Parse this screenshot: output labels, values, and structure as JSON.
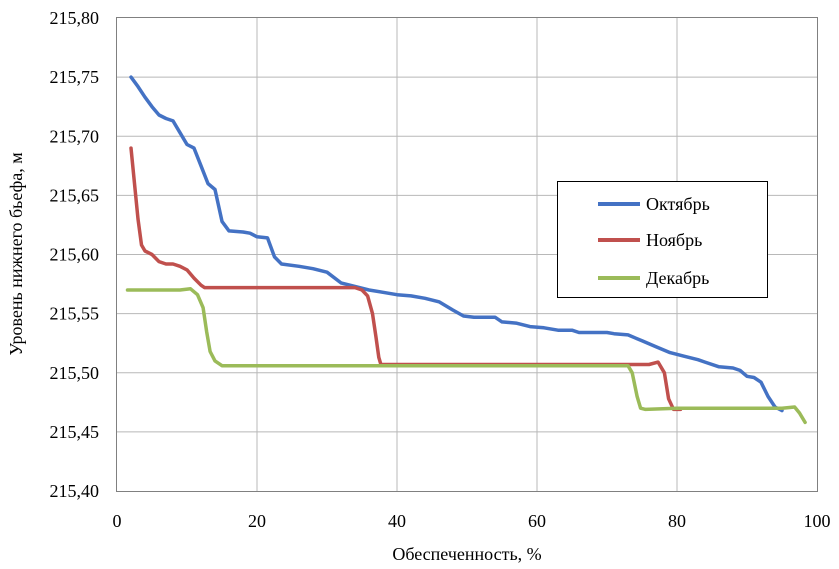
{
  "chart_data": {
    "type": "line",
    "xlabel": "Обеспеченность, %",
    "ylabel": "Уровень нижнего бьефа, м",
    "xlim": [
      0,
      100
    ],
    "ylim": [
      215.4,
      215.8
    ],
    "x_ticks": [
      "0",
      "20",
      "40",
      "60",
      "80",
      "100"
    ],
    "y_ticks": [
      "215,40",
      "215,45",
      "215,50",
      "215,55",
      "215,60",
      "215,65",
      "215,70",
      "215,75",
      "215,80"
    ],
    "grid": true,
    "legend_position": "right",
    "series": [
      {
        "name": "Октябрь",
        "color": "#4472C4",
        "points": [
          [
            2,
            215.75
          ],
          [
            3,
            215.742
          ],
          [
            4,
            215.733
          ],
          [
            5,
            215.725
          ],
          [
            6,
            215.718
          ],
          [
            7,
            215.715
          ],
          [
            8,
            215.713
          ],
          [
            9,
            215.703
          ],
          [
            10,
            215.693
          ],
          [
            11,
            215.69
          ],
          [
            12,
            215.675
          ],
          [
            13,
            215.66
          ],
          [
            14,
            215.655
          ],
          [
            15,
            215.628
          ],
          [
            16,
            215.62
          ],
          [
            18,
            215.619
          ],
          [
            19,
            215.618
          ],
          [
            20,
            215.615
          ],
          [
            21.5,
            215.614
          ],
          [
            22.5,
            215.598
          ],
          [
            23.5,
            215.592
          ],
          [
            26,
            215.59
          ],
          [
            28,
            215.588
          ],
          [
            30,
            215.585
          ],
          [
            32,
            215.576
          ],
          [
            34,
            215.573
          ],
          [
            36,
            215.57
          ],
          [
            38,
            215.568
          ],
          [
            40,
            215.566
          ],
          [
            42,
            215.565
          ],
          [
            44,
            215.563
          ],
          [
            46,
            215.56
          ],
          [
            48,
            215.553
          ],
          [
            49.5,
            215.548
          ],
          [
            51,
            215.547
          ],
          [
            53,
            215.547
          ],
          [
            54,
            215.547
          ],
          [
            55,
            215.543
          ],
          [
            57,
            215.542
          ],
          [
            59,
            215.539
          ],
          [
            61,
            215.538
          ],
          [
            63,
            215.536
          ],
          [
            65,
            215.536
          ],
          [
            66,
            215.534
          ],
          [
            68,
            215.534
          ],
          [
            70,
            215.534
          ],
          [
            71,
            215.533
          ],
          [
            73,
            215.532
          ],
          [
            75,
            215.527
          ],
          [
            77,
            215.522
          ],
          [
            79,
            215.517
          ],
          [
            81,
            215.514
          ],
          [
            83,
            215.511
          ],
          [
            84,
            215.509
          ],
          [
            86,
            215.505
          ],
          [
            88,
            215.504
          ],
          [
            89,
            215.502
          ],
          [
            90,
            215.497
          ],
          [
            91,
            215.496
          ],
          [
            92,
            215.492
          ],
          [
            93,
            215.48
          ],
          [
            94,
            215.471
          ],
          [
            95,
            215.468
          ]
        ]
      },
      {
        "name": "Ноябрь",
        "color": "#C0504D",
        "points": [
          [
            2,
            215.69
          ],
          [
            2.5,
            215.66
          ],
          [
            3,
            215.63
          ],
          [
            3.5,
            215.608
          ],
          [
            4,
            215.603
          ],
          [
            5,
            215.6
          ],
          [
            6,
            215.594
          ],
          [
            7,
            215.592
          ],
          [
            8,
            215.592
          ],
          [
            9,
            215.59
          ],
          [
            10,
            215.587
          ],
          [
            11,
            215.58
          ],
          [
            12,
            215.574
          ],
          [
            12.5,
            215.572
          ],
          [
            14,
            215.572
          ],
          [
            20,
            215.572
          ],
          [
            30,
            215.572
          ],
          [
            34,
            215.572
          ],
          [
            35,
            215.57
          ],
          [
            35.8,
            215.565
          ],
          [
            36.5,
            215.55
          ],
          [
            37,
            215.53
          ],
          [
            37.4,
            215.513
          ],
          [
            37.7,
            215.507
          ],
          [
            40,
            215.507
          ],
          [
            50,
            215.507
          ],
          [
            60,
            215.507
          ],
          [
            70,
            215.507
          ],
          [
            76,
            215.507
          ],
          [
            77.3,
            215.509
          ],
          [
            78.2,
            215.5
          ],
          [
            78.8,
            215.478
          ],
          [
            79.5,
            215.469
          ],
          [
            80.5,
            215.469
          ]
        ]
      },
      {
        "name": "Декабрь",
        "color": "#9BBB59",
        "points": [
          [
            1.5,
            215.57
          ],
          [
            5,
            215.57
          ],
          [
            9,
            215.57
          ],
          [
            10.5,
            215.571
          ],
          [
            11.5,
            215.566
          ],
          [
            12.3,
            215.555
          ],
          [
            12.8,
            215.535
          ],
          [
            13.3,
            215.518
          ],
          [
            14,
            215.51
          ],
          [
            15,
            215.506
          ],
          [
            16,
            215.506
          ],
          [
            20,
            215.506
          ],
          [
            30,
            215.506
          ],
          [
            40,
            215.506
          ],
          [
            50,
            215.506
          ],
          [
            60,
            215.506
          ],
          [
            70,
            215.506
          ],
          [
            73,
            215.506
          ],
          [
            73.6,
            215.5
          ],
          [
            74.3,
            215.48
          ],
          [
            74.8,
            215.47
          ],
          [
            75.5,
            215.469
          ],
          [
            80,
            215.47
          ],
          [
            90,
            215.47
          ],
          [
            95,
            215.47
          ],
          [
            96.8,
            215.471
          ],
          [
            97.5,
            215.466
          ],
          [
            98.3,
            215.458
          ]
        ]
      }
    ]
  }
}
